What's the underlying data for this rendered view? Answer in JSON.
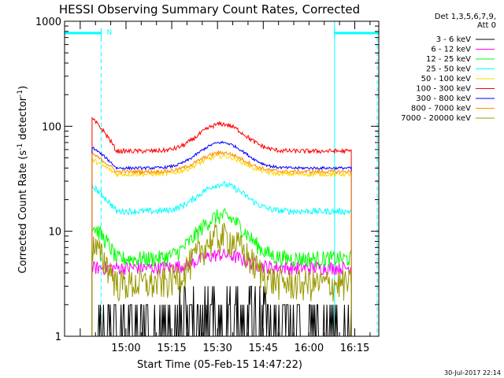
{
  "chart_data": {
    "type": "line",
    "title": "HESSI Observing Summary Count Rates, Corrected",
    "xlabel": "Start Time (05-Feb-15 14:47:22)",
    "ylabel_main": "Corrected Count Rate (s",
    "ylabel_sup1": "-1",
    "ylabel_mid": " detector",
    "ylabel_sup2": "-1",
    "ylabel_end": ")",
    "yscale": "log",
    "ylim": [
      1,
      1000
    ],
    "xlim_minutes": [
      -7.5,
      95.5
    ],
    "x_ticks": [
      "15:00",
      "15:15",
      "15:30",
      "15:45",
      "16:00",
      "16:15"
    ],
    "y_ticks": [
      "1",
      "10",
      "100",
      "1000"
    ],
    "legend_header": [
      "Det 1,3,5,6,7,9,",
      "Att 0"
    ],
    "date_stamp": "30-Jul-2017 22:14",
    "flag_label": "N",
    "series": [
      {
        "name": "3 - 6 keV",
        "color": "#000000",
        "base": 1.5,
        "peak": 2.7,
        "noise": 0.6,
        "low_floor": true
      },
      {
        "name": "6 - 12 keV",
        "color": "#ff00ff",
        "base": 4.5,
        "peak": 6.0,
        "noise": 0.15
      },
      {
        "name": "12 - 25 keV",
        "color": "#00ff00",
        "base": 5.5,
        "peak": 14.0,
        "start": 11.5,
        "noise": 0.18
      },
      {
        "name": "25 - 50 keV",
        "color": "#00ffff",
        "base": 15.5,
        "peak": 28.0,
        "start": 27.0,
        "noise": 0.07
      },
      {
        "name": "50 - 100 keV",
        "color": "#ffd700",
        "base": 35.0,
        "peak": 52.0,
        "start": 48.0,
        "noise": 0.05
      },
      {
        "name": "100 - 300 keV",
        "color": "#ff0000",
        "base": 58.0,
        "peak": 105.0,
        "start": 118.0,
        "noise": 0.05
      },
      {
        "name": "300 - 800 keV",
        "color": "#0000ff",
        "base": 40.0,
        "peak": 70.0,
        "start": 63.0,
        "noise": 0.03
      },
      {
        "name": "800 - 7000 keV",
        "color": "#ff8c00",
        "base": 37.0,
        "peak": 56.0,
        "start": 55.0,
        "noise": 0.04
      },
      {
        "name": "7000 - 20000 keV",
        "color": "#999900",
        "base": 3.2,
        "peak": 9.0,
        "start": 7.5,
        "noise": 0.35
      }
    ],
    "data_range_minutes": [
      1.5,
      86.5
    ],
    "peak_center_minutes": 44,
    "saa_intervals_minutes": [
      [
        -7.5,
        4.5
      ],
      [
        81.0,
        95.5
      ]
    ],
    "saa_color": "#00ffff"
  }
}
